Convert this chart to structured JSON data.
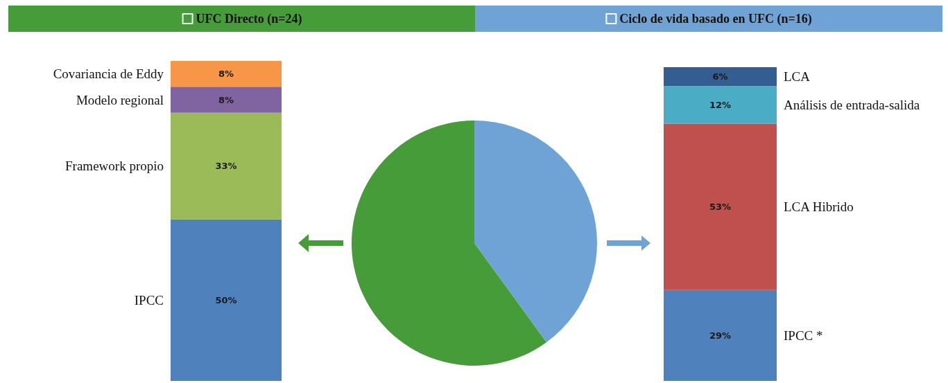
{
  "chart_data": [
    {
      "type": "bar",
      "stacked": true,
      "categories": [
        null
      ],
      "series": [
        {
          "name": "IPCC",
          "color": "#4f81bd",
          "values": [
            50
          ],
          "value_labels": [
            "50%"
          ]
        },
        {
          "name": "Framework propio",
          "color": "#9bbb59",
          "values": [
            33
          ],
          "value_labels": [
            "33%"
          ]
        },
        {
          "name": "Modelo regional",
          "color": "#8064a2",
          "values": [
            8
          ],
          "value_labels": [
            "8%"
          ]
        },
        {
          "name": "Covariancia de Eddy",
          "color": "#f79646",
          "values": [
            8
          ],
          "value_labels": [
            "8%"
          ]
        }
      ]
    },
    {
      "type": "pie",
      "categories": [
        "UFC Directo (n=24)",
        "Ciclo de vida basado en UFC (n=16)"
      ],
      "values": [
        24,
        16
      ],
      "colors": [
        "#459c38",
        "#6fa3d5"
      ],
      "legend": "top"
    },
    {
      "type": "bar",
      "stacked": true,
      "categories": [
        null
      ],
      "series": [
        {
          "name": "IPCC *",
          "color": "#4f81bd",
          "values": [
            29
          ],
          "value_labels": [
            "29%"
          ]
        },
        {
          "name": "LCA Hibrido",
          "color": "#c0504d",
          "values": [
            53
          ],
          "value_labels": [
            "53%"
          ]
        },
        {
          "name": "Análisis de entrada-salida",
          "color": "#4bacc6",
          "values": [
            12
          ],
          "value_labels": [
            "12%"
          ]
        },
        {
          "name": "LCA",
          "color": "#345d91",
          "values": [
            6
          ],
          "value_labels": [
            "6%"
          ]
        }
      ]
    }
  ]
}
